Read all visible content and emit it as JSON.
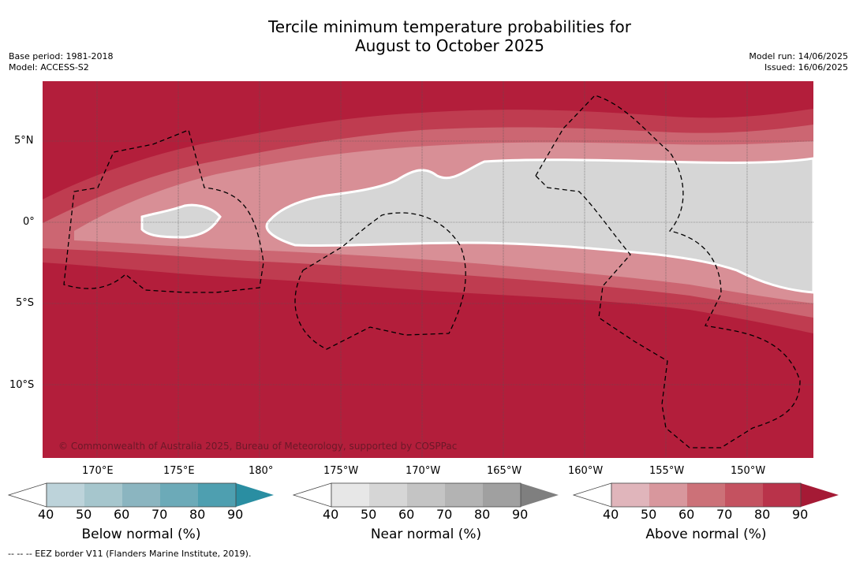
{
  "title": {
    "line1": "Tercile minimum temperature probabilities for",
    "line2": "August to October 2025"
  },
  "meta_left": {
    "base_period": "Base period: 1981-2018",
    "model": "Model: ACCESS-S2"
  },
  "meta_right": {
    "model_run": "Model run: 14/06/2025",
    "issued": "Issued: 16/06/2025"
  },
  "map": {
    "lat_labels": [
      "5°N",
      "0°",
      "5°S",
      "10°S"
    ],
    "lon_labels": [
      "170°E",
      "175°E",
      "180°",
      "175°W",
      "170°W",
      "165°W",
      "160°W",
      "155°W",
      "150°W"
    ],
    "copyright": "© Commonwealth of Australia 2025, Bureau of Meteorology, supported by COSPPac",
    "colors": {
      "above_90": "#b31e3b",
      "above_80": "#bf3c50",
      "above_70": "#cc6672",
      "above_60": "#d88f96",
      "near_light": "#d6d6d6",
      "near_mid": "#c8c8c8"
    }
  },
  "colorbars": [
    {
      "title": "Below normal (%)",
      "ticks": [
        "40",
        "50",
        "60",
        "70",
        "80",
        "90"
      ],
      "colors": [
        "#bdd3da",
        "#a6c6cd",
        "#8bb5c0",
        "#6caab8",
        "#4e9fb0",
        "#2a8ea2"
      ]
    },
    {
      "title": "Near normal (%)",
      "ticks": [
        "40",
        "50",
        "60",
        "70",
        "80",
        "90"
      ],
      "colors": [
        "#e7e7e7",
        "#d6d6d6",
        "#c4c4c4",
        "#b3b3b3",
        "#a0a0a0",
        "#7f7f7f"
      ]
    },
    {
      "title": "Above normal (%)",
      "ticks": [
        "40",
        "50",
        "60",
        "70",
        "80",
        "90"
      ],
      "colors": [
        "#e0b5bb",
        "#d8979d",
        "#cc7178",
        "#c45260",
        "#b9334a",
        "#a51a35"
      ]
    }
  ],
  "footnote": "--  --  -- EEZ border V11 (Flanders Marine Institute, 2019)."
}
